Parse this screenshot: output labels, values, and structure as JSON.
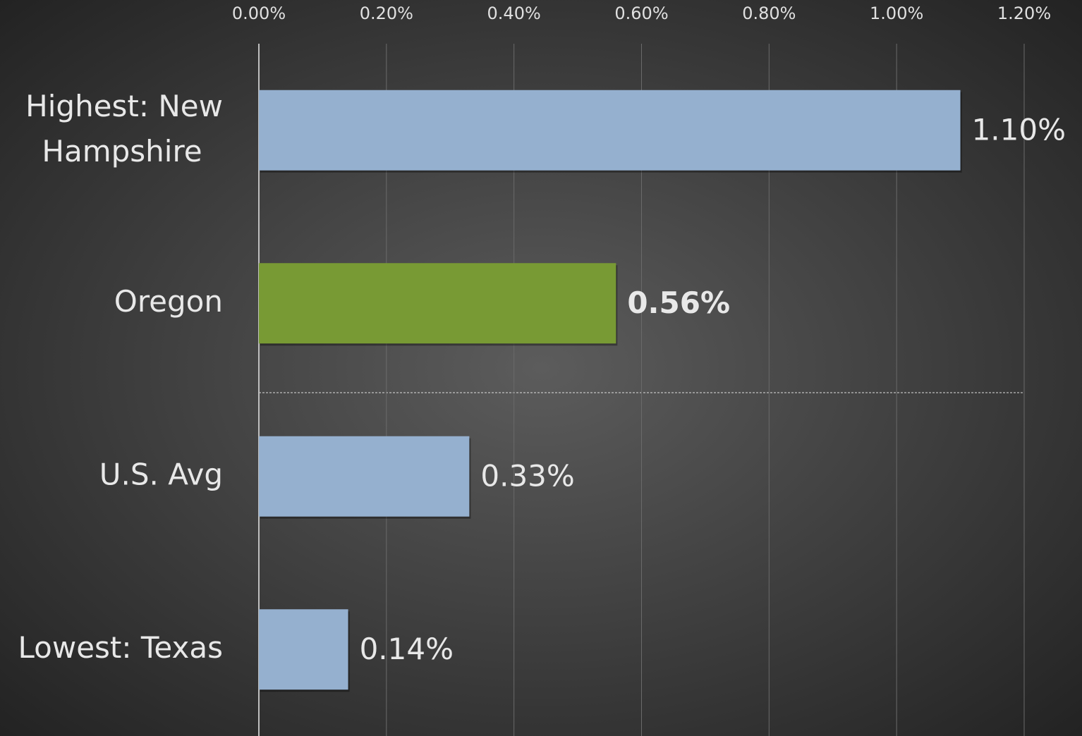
{
  "chart_data": {
    "type": "hbar",
    "categories": [
      "Highest: New Hampshire",
      "Oregon",
      "U.S. Avg",
      "Lowest: Texas"
    ],
    "values": [
      1.1,
      0.56,
      0.33,
      0.14
    ],
    "value_labels": [
      "1.10%",
      "0.56%",
      "0.33%",
      "0.14%"
    ],
    "colors": [
      "#95b0cf",
      "#789a34",
      "#95b0cf",
      "#95b0cf"
    ],
    "xlim": [
      0,
      1.2
    ],
    "xticks": [
      {
        "value": 0,
        "label": "0.00%"
      },
      {
        "value": 0.2,
        "label": "0.20%"
      },
      {
        "value": 0.4,
        "label": "0.40%"
      },
      {
        "value": 0.6,
        "label": "0.60%"
      },
      {
        "value": 0.8,
        "label": "0.80%"
      },
      {
        "value": 1.0,
        "label": "1.00%"
      },
      {
        "value": 1.2,
        "label": "1.20%"
      }
    ],
    "grid": true
  }
}
